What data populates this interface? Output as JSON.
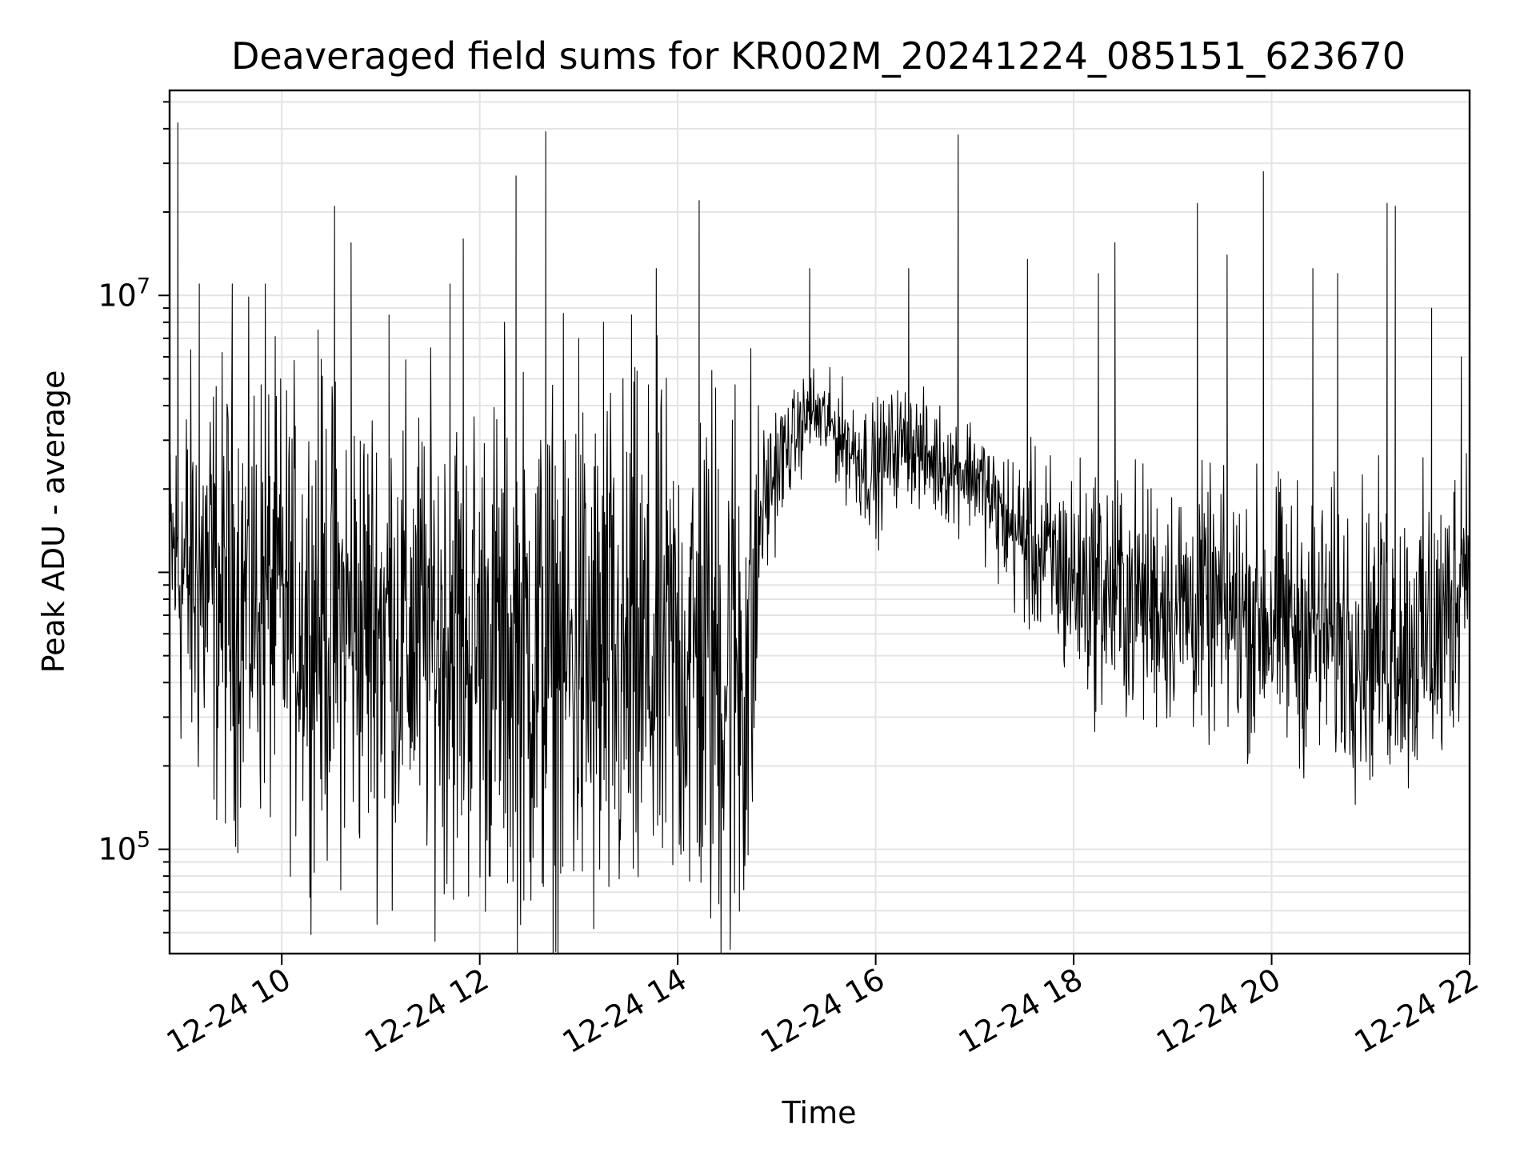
{
  "chart_data": {
    "type": "line",
    "title": "Deaveraged field sums for KR002M_20241224_085151_623670",
    "xlabel": "Time",
    "ylabel": "Peak ADU - average",
    "yscale": "log",
    "ylim": [
      42000,
      55000000
    ],
    "xlim": [
      "2024-12-24 08:52",
      "2024-12-24 22:00"
    ],
    "grid": true,
    "line_color": "#000000",
    "x_ticks": [
      {
        "value": "2024-12-24 10:00",
        "label": "12-24 10"
      },
      {
        "value": "2024-12-24 12:00",
        "label": "12-24 12"
      },
      {
        "value": "2024-12-24 14:00",
        "label": "12-24 14"
      },
      {
        "value": "2024-12-24 16:00",
        "label": "12-24 16"
      },
      {
        "value": "2024-12-24 18:00",
        "label": "12-24 18"
      },
      {
        "value": "2024-12-24 20:00",
        "label": "12-24 20"
      },
      {
        "value": "2024-12-24 22:00",
        "label": "12-24 22"
      }
    ],
    "y_ticks": [
      {
        "value": 100000,
        "mantissa": "10",
        "exponent": "5"
      },
      {
        "value": 10000000,
        "mantissa": "10",
        "exponent": "7"
      }
    ],
    "series": [
      {
        "x": [
          "2024-12-24 08:52",
          "2024-12-24 09:00",
          "2024-12-24 09:15",
          "2024-12-24 09:30",
          "2024-12-24 09:45",
          "2024-12-24 10:00",
          "2024-12-24 10:15",
          "2024-12-24 10:30",
          "2024-12-24 10:45",
          "2024-12-24 11:00",
          "2024-12-24 11:15",
          "2024-12-24 11:30",
          "2024-12-24 11:45",
          "2024-12-24 12:00",
          "2024-12-24 12:15",
          "2024-12-24 12:30",
          "2024-12-24 12:45",
          "2024-12-24 13:00",
          "2024-12-24 13:15",
          "2024-12-24 13:30",
          "2024-12-24 13:45",
          "2024-12-24 14:00",
          "2024-12-24 14:15",
          "2024-12-24 14:30",
          "2024-12-24 14:45",
          "2024-12-24 14:50",
          "2024-12-24 15:00",
          "2024-12-24 15:10",
          "2024-12-24 15:20",
          "2024-12-24 15:30",
          "2024-12-24 15:45",
          "2024-12-24 16:00",
          "2024-12-24 16:10",
          "2024-12-24 16:20",
          "2024-12-24 16:30",
          "2024-12-24 16:45",
          "2024-12-24 17:00",
          "2024-12-24 17:15",
          "2024-12-24 17:30",
          "2024-12-24 17:45",
          "2024-12-24 18:00",
          "2024-12-24 18:30",
          "2024-12-24 19:00",
          "2024-12-24 19:30",
          "2024-12-24 20:00",
          "2024-12-24 20:30",
          "2024-12-24 21:00",
          "2024-12-24 21:30",
          "2024-12-24 21:45",
          "2024-12-24 22:00"
        ],
        "y": [
          1200000,
          1000000,
          900000,
          800000,
          850000,
          750000,
          700000,
          650000,
          650000,
          650000,
          600000,
          600000,
          580000,
          550000,
          520000,
          500000,
          480000,
          460000,
          420000,
          420000,
          450000,
          500000,
          480000,
          460000,
          500000,
          1600000,
          2400000,
          3000000,
          3800000,
          3500000,
          2800000,
          2300000,
          2800000,
          3000000,
          2600000,
          2400000,
          2300000,
          1600000,
          1300000,
          1100000,
          950000,
          820000,
          780000,
          720000,
          680000,
          620000,
          580000,
          560000,
          600000,
          1400000
        ],
        "noise_dex": [
          0.2,
          0.35,
          0.4,
          0.4,
          0.4,
          0.4,
          0.4,
          0.42,
          0.42,
          0.42,
          0.42,
          0.42,
          0.45,
          0.45,
          0.45,
          0.48,
          0.48,
          0.5,
          0.5,
          0.5,
          0.48,
          0.45,
          0.5,
          0.55,
          0.55,
          0.15,
          0.12,
          0.08,
          0.08,
          0.08,
          0.1,
          0.12,
          0.1,
          0.1,
          0.1,
          0.1,
          0.1,
          0.12,
          0.15,
          0.18,
          0.2,
          0.22,
          0.22,
          0.22,
          0.24,
          0.24,
          0.26,
          0.26,
          0.28,
          0.2
        ]
      }
    ],
    "spikes": [
      {
        "x": "2024-12-24 08:57",
        "y": 42000000
      },
      {
        "x": "2024-12-24 09:10",
        "y": 11000000
      },
      {
        "x": "2024-12-24 09:30",
        "y": 11000000
      },
      {
        "x": "2024-12-24 09:50",
        "y": 11000000
      },
      {
        "x": "2024-12-24 10:22",
        "y": 7500000
      },
      {
        "x": "2024-12-24 10:32",
        "y": 21000000
      },
      {
        "x": "2024-12-24 10:42",
        "y": 15500000
      },
      {
        "x": "2024-12-24 11:05",
        "y": 8500000
      },
      {
        "x": "2024-12-24 11:42",
        "y": 11000000
      },
      {
        "x": "2024-12-24 11:50",
        "y": 16000000
      },
      {
        "x": "2024-12-24 12:15",
        "y": 8000000
      },
      {
        "x": "2024-12-24 12:22",
        "y": 27000000
      },
      {
        "x": "2024-12-24 12:40",
        "y": 39000000
      },
      {
        "x": "2024-12-24 13:00",
        "y": 7000000
      },
      {
        "x": "2024-12-24 13:15",
        "y": 8000000
      },
      {
        "x": "2024-12-24 13:32",
        "y": 8500000
      },
      {
        "x": "2024-12-24 13:47",
        "y": 12500000
      },
      {
        "x": "2024-12-24 14:13",
        "y": 22000000
      },
      {
        "x": "2024-12-24 15:20",
        "y": 12500000
      },
      {
        "x": "2024-12-24 16:20",
        "y": 12500000
      },
      {
        "x": "2024-12-24 16:50",
        "y": 38000000
      },
      {
        "x": "2024-12-24 17:32",
        "y": 13500000
      },
      {
        "x": "2024-12-24 18:15",
        "y": 12000000
      },
      {
        "x": "2024-12-24 18:25",
        "y": 15500000
      },
      {
        "x": "2024-12-24 19:15",
        "y": 21500000
      },
      {
        "x": "2024-12-24 19:33",
        "y": 14000000
      },
      {
        "x": "2024-12-24 19:55",
        "y": 28000000
      },
      {
        "x": "2024-12-24 20:25",
        "y": 12500000
      },
      {
        "x": "2024-12-24 20:40",
        "y": 12000000
      },
      {
        "x": "2024-12-24 21:10",
        "y": 21500000
      },
      {
        "x": "2024-12-24 21:15",
        "y": 21000000
      },
      {
        "x": "2024-12-24 21:37",
        "y": 9000000
      },
      {
        "x": "2024-12-24 21:55",
        "y": 6000000
      }
    ]
  }
}
